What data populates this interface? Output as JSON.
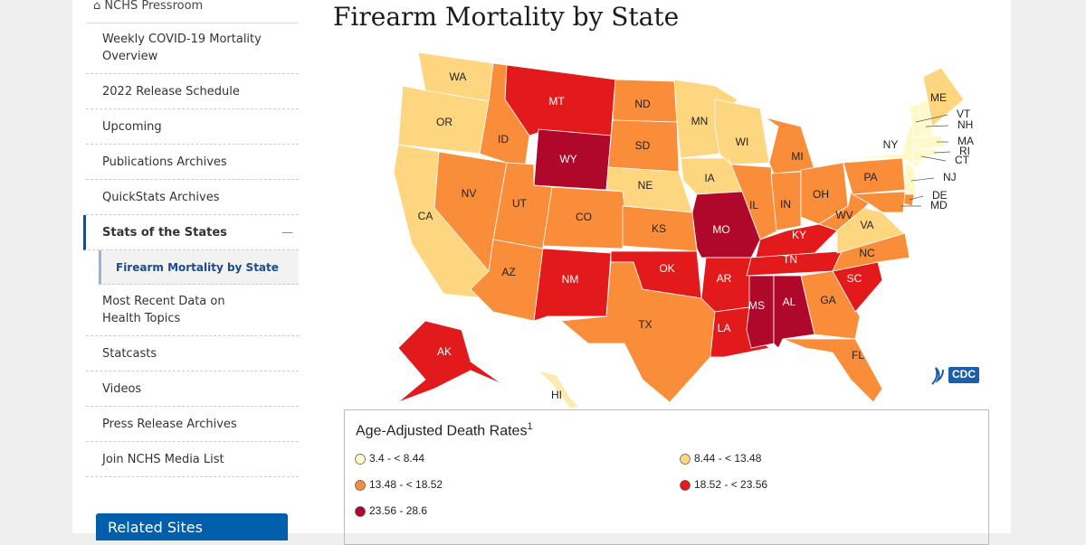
{
  "sidebar": {
    "home": "NCHS Pressroom",
    "items": [
      "Weekly COVID-19 Mortality Overview",
      "2022 Release Schedule",
      "Upcoming",
      "Publications Archives",
      "QuickStats Archives"
    ],
    "active": "Stats of the States",
    "sub": "Firearm Mortality by State",
    "items_after": [
      "Most Recent Data on Health Topics",
      "Statcasts",
      "Videos",
      "Press Release Archives",
      "Join NCHS Media List"
    ],
    "related": "Related Sites"
  },
  "title": "Firearm Mortality by State",
  "map": {
    "states": [
      {
        "label": "WA",
        "color": "#fed680"
      },
      {
        "label": "OR",
        "color": "#fed680"
      },
      {
        "label": "CA",
        "color": "#fed680"
      },
      {
        "label": "NV",
        "color": "#f98d3a"
      },
      {
        "label": "ID",
        "color": "#f98d3a"
      },
      {
        "label": "MT",
        "color": "#e31a1c"
      },
      {
        "label": "WY",
        "color": "#b0082a"
      },
      {
        "label": "UT",
        "color": "#f98d3a"
      },
      {
        "label": "AZ",
        "color": "#f98d3a"
      },
      {
        "label": "CO",
        "color": "#f98d3a"
      },
      {
        "label": "NM",
        "color": "#e31a1c"
      },
      {
        "label": "ND",
        "color": "#f98d3a"
      },
      {
        "label": "SD",
        "color": "#f98d3a"
      },
      {
        "label": "NE",
        "color": "#fed680"
      },
      {
        "label": "KS",
        "color": "#f98d3a"
      },
      {
        "label": "OK",
        "color": "#e31a1c"
      },
      {
        "label": "TX",
        "color": "#f98d3a"
      },
      {
        "label": "MN",
        "color": "#fed680"
      },
      {
        "label": "IA",
        "color": "#fed680"
      },
      {
        "label": "MO",
        "color": "#b0082a"
      },
      {
        "label": "AR",
        "color": "#e31a1c"
      },
      {
        "label": "LA",
        "color": "#e31a1c"
      },
      {
        "label": "WI",
        "color": "#fed680"
      },
      {
        "label": "IL",
        "color": "#f98d3a"
      },
      {
        "label": "MI",
        "color": "#f98d3a"
      },
      {
        "label": "IN",
        "color": "#f98d3a"
      },
      {
        "label": "OH",
        "color": "#f98d3a"
      },
      {
        "label": "KY",
        "color": "#e31a1c"
      },
      {
        "label": "TN",
        "color": "#e31a1c"
      },
      {
        "label": "MS",
        "color": "#b0082a"
      },
      {
        "label": "AL",
        "color": "#b0082a"
      },
      {
        "label": "GA",
        "color": "#f98d3a"
      },
      {
        "label": "FL",
        "color": "#f98d3a"
      },
      {
        "label": "SC",
        "color": "#e31a1c"
      },
      {
        "label": "NC",
        "color": "#f98d3a"
      },
      {
        "label": "VA",
        "color": "#fed680"
      },
      {
        "label": "WV",
        "color": "#f98d3a"
      },
      {
        "label": "PA",
        "color": "#f98d3a"
      },
      {
        "label": "NY",
        "color": "#fff9c9"
      },
      {
        "label": "NJ",
        "color": "#fff9c9"
      },
      {
        "label": "DE",
        "color": "#f98d3a"
      },
      {
        "label": "MD",
        "color": "#f98d3a"
      },
      {
        "label": "VT",
        "color": "#fff9c9"
      },
      {
        "label": "NH",
        "color": "#fff9c9"
      },
      {
        "label": "MA",
        "color": "#fff9c9"
      },
      {
        "label": "RI",
        "color": "#fff9c9"
      },
      {
        "label": "CT",
        "color": "#fff9c9"
      },
      {
        "label": "ME",
        "color": "#fed680"
      },
      {
        "label": "AK",
        "color": "#e31a1c"
      },
      {
        "label": "HI",
        "color": "#fdeab0"
      }
    ],
    "logo": "CDC"
  },
  "legend": {
    "title": "Age-Adjusted Death Rates",
    "footnote": "1",
    "items": [
      {
        "label": "3.4 - < 8.44",
        "color": "#fff9c9"
      },
      {
        "label": "8.44 - < 13.48",
        "color": "#fed680"
      },
      {
        "label": "13.48 - < 18.52",
        "color": "#f98d3a"
      },
      {
        "label": "18.52 - < 23.56",
        "color": "#e31a1c"
      },
      {
        "label": "23.56 - 28.6",
        "color": "#b0082a"
      }
    ]
  }
}
